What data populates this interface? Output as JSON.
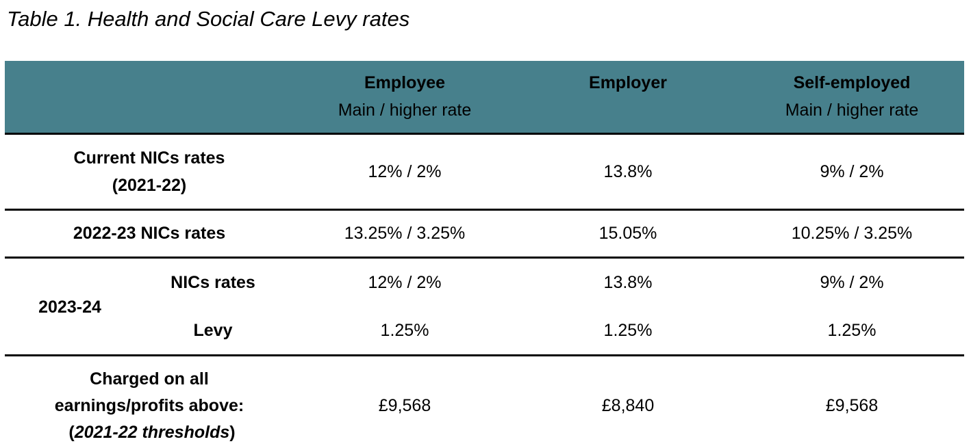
{
  "title": "Table 1. Health and Social Care Levy rates",
  "header_color": "#47808c",
  "columns": [
    {
      "name": "Employee",
      "sub": "Main / higher rate"
    },
    {
      "name": "Employer",
      "sub": ""
    },
    {
      "name": "Self-employed",
      "sub": "Main / higher rate"
    }
  ],
  "rows": {
    "current": {
      "label1": "Current NICs rates",
      "label2": "(2021-22)",
      "values": [
        "12% / 2%",
        "13.8%",
        "9% / 2%"
      ]
    },
    "y2223": {
      "label": "2022-23 NICs rates",
      "values": [
        "13.25% / 3.25%",
        "15.05%",
        "10.25% / 3.25%"
      ]
    },
    "y2324": {
      "label": "2023-24",
      "nics_label": "NICs rates",
      "nics": [
        "12% / 2%",
        "13.8%",
        "9% / 2%"
      ],
      "levy_label": "Levy",
      "levy": [
        "1.25%",
        "1.25%",
        "1.25%"
      ]
    },
    "threshold": {
      "label1": "Charged on all",
      "label2": "earnings/profits above:",
      "label3_open": "(",
      "label3_italic": "2021-22 thresholds",
      "label3_close": ")",
      "values": [
        "£9,568",
        "£8,840",
        "£9,568"
      ]
    }
  }
}
